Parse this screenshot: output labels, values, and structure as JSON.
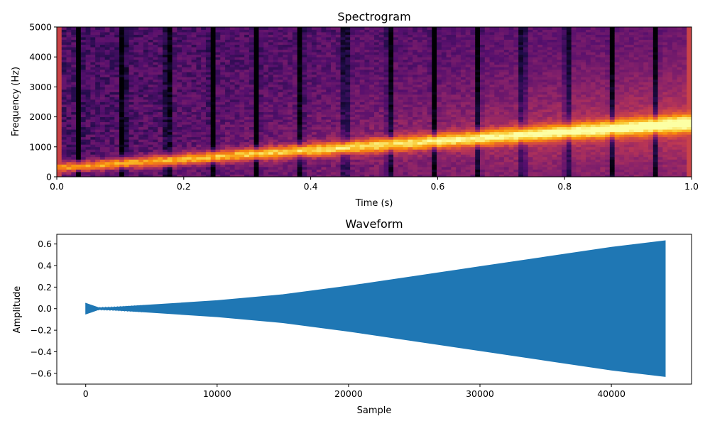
{
  "chart_data": [
    {
      "type": "heatmap",
      "title": "Spectrogram",
      "xlabel": "Time (s)",
      "ylabel": "Frequency (Hz)",
      "xlim": [
        0,
        1.0
      ],
      "ylim": [
        0,
        5000
      ],
      "xticks": [
        0.0,
        0.2,
        0.4,
        0.6,
        0.8,
        1.0
      ],
      "xtick_labels": [
        "0.0",
        "0.2",
        "0.4",
        "0.6",
        "0.8",
        "1.0"
      ],
      "yticks": [
        0,
        1000,
        2000,
        3000,
        4000,
        5000
      ],
      "ytick_labels": [
        "0",
        "1000",
        "2000",
        "3000",
        "4000",
        "5000"
      ],
      "colormap": "inferno",
      "ridge": {
        "x": [
          0.0,
          1.0
        ],
        "freq": [
          300,
          1800
        ]
      },
      "grid": false
    },
    {
      "type": "area",
      "title": "Waveform",
      "xlabel": "Sample",
      "ylabel": "Amplitude",
      "xlim": [
        -2200,
        46100
      ],
      "ylim": [
        -0.7,
        0.69
      ],
      "xticks": [
        0,
        10000,
        20000,
        30000,
        40000
      ],
      "xtick_labels": [
        "0",
        "10000",
        "20000",
        "30000",
        "40000"
      ],
      "yticks": [
        -0.6,
        -0.4,
        -0.2,
        0.0,
        0.2,
        0.4,
        0.6
      ],
      "ytick_labels": [
        "−0.6",
        "−0.4",
        "−0.2",
        "0.0",
        "0.2",
        "0.4",
        "0.6"
      ],
      "envelope": {
        "x": [
          0,
          1000,
          2000,
          5000,
          10000,
          15000,
          20000,
          25000,
          30000,
          35000,
          40000,
          44100
        ],
        "y": [
          0.05,
          0.008,
          0.012,
          0.035,
          0.075,
          0.13,
          0.21,
          0.3,
          0.39,
          0.48,
          0.57,
          0.63
        ]
      },
      "color": "#1f77b4",
      "grid": false
    }
  ]
}
